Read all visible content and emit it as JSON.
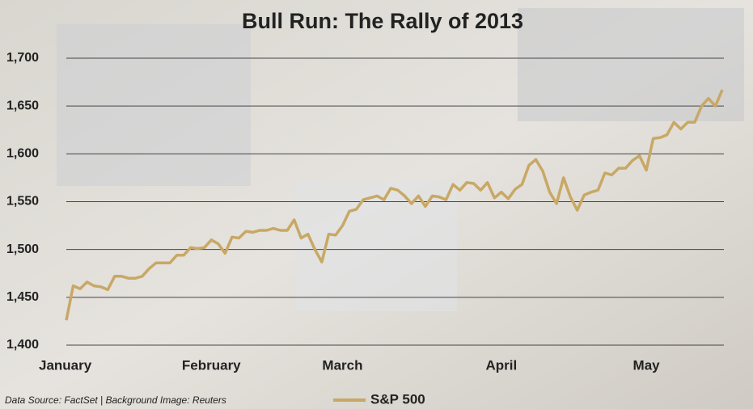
{
  "chart_data": {
    "type": "line",
    "title": "Bull Run: The Rally of 2013",
    "source": "Data Source: FactSet | Background Image: Reuters",
    "categories": [
      "January",
      null,
      null,
      null,
      null,
      null,
      null,
      null,
      null,
      null,
      null,
      null,
      null,
      null,
      null,
      null,
      null,
      null,
      null,
      null,
      null,
      "February",
      null,
      null,
      null,
      null,
      null,
      null,
      null,
      null,
      null,
      null,
      null,
      null,
      null,
      null,
      null,
      null,
      null,
      null,
      "March",
      null,
      null,
      null,
      null,
      null,
      null,
      null,
      null,
      null,
      null,
      null,
      null,
      null,
      null,
      null,
      null,
      null,
      null,
      null,
      null,
      null,
      null,
      "April",
      null,
      null,
      null,
      null,
      null,
      null,
      null,
      null,
      null,
      null,
      null,
      null,
      null,
      null,
      null,
      null,
      null,
      null,
      null,
      null,
      "May",
      null,
      null,
      null,
      null,
      null,
      null,
      null,
      null,
      null,
      null,
      null
    ],
    "series": [
      {
        "name": "S&P 500",
        "color": "#c8a865",
        "values": [
          1426,
          1462,
          1459,
          1466,
          1462,
          1461,
          1458,
          1472,
          1472,
          1470,
          1470,
          1472,
          1480,
          1486,
          1486,
          1486,
          1494,
          1494,
          1502,
          1501,
          1502,
          1510,
          1506,
          1496,
          1513,
          1512,
          1519,
          1518,
          1520,
          1520,
          1522,
          1520,
          1520,
          1531,
          1512,
          1516,
          1500,
          1487,
          1516,
          1515,
          1525,
          1540,
          1542,
          1552,
          1554,
          1556,
          1552,
          1564,
          1562,
          1556,
          1548,
          1556,
          1545,
          1556,
          1555,
          1552,
          1568,
          1562,
          1570,
          1569,
          1562,
          1570,
          1554,
          1560,
          1553,
          1563,
          1568,
          1588,
          1594,
          1582,
          1560,
          1548,
          1575,
          1555,
          1541,
          1557,
          1560,
          1562,
          1580,
          1578,
          1585,
          1585,
          1593,
          1598,
          1583,
          1616,
          1617,
          1620,
          1633,
          1626,
          1633,
          1633,
          1650,
          1658,
          1650,
          1667
        ]
      }
    ],
    "ylim": [
      1400,
      1700
    ],
    "yticks": [
      {
        "value": 1400,
        "label": "1,400"
      },
      {
        "value": 1450,
        "label": "1,450"
      },
      {
        "value": 1500,
        "label": "1,500"
      },
      {
        "value": 1550,
        "label": "1,550"
      },
      {
        "value": 1600,
        "label": "1,600"
      },
      {
        "value": 1650,
        "label": "1,650"
      },
      {
        "value": 1700,
        "label": "1,700"
      }
    ],
    "grid": true,
    "legend": "bottom"
  }
}
